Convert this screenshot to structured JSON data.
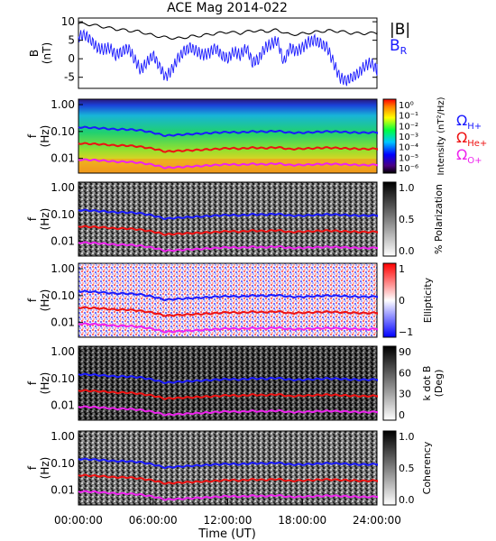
{
  "title": "ACE Mag 2014-022",
  "xaxis": {
    "label": "Time (UT)",
    "ticks": [
      "00:00:00",
      "06:00:00",
      "12:00:00",
      "18:00:00",
      "24:00:00"
    ],
    "range_hours": [
      0,
      24
    ]
  },
  "legend_b": {
    "total": "|B|",
    "radial_base": "B",
    "radial_sub": "R",
    "total_color": "#000000",
    "radial_color": "#1a1aff"
  },
  "gyro_legend": [
    {
      "base": "Ω",
      "sub": "H+",
      "color": "#1a1aff"
    },
    {
      "base": "Ω",
      "sub": "He+",
      "color": "#ee1111"
    },
    {
      "base": "Ω",
      "sub": "O+",
      "color": "#ee22ee"
    }
  ],
  "chart_data": [
    {
      "type": "line",
      "panel": "magnetic-field",
      "ylabel_top": "B",
      "ylabel_bottom": "(nT)",
      "ylim": [
        -8,
        11
      ],
      "yticks": [
        "10",
        "5",
        "0",
        "-5"
      ],
      "ytick_values": [
        10,
        5,
        0,
        -5
      ],
      "series": [
        {
          "name": "|B|",
          "x_hours": [
            0,
            1,
            2,
            3,
            4,
            5,
            6,
            7,
            8,
            9,
            10,
            11,
            12,
            13,
            14,
            15,
            16,
            17,
            18,
            19,
            20,
            21,
            22,
            23,
            24
          ],
          "values": [
            9.5,
            9.2,
            8.6,
            8.0,
            7.6,
            7.3,
            6.3,
            5.8,
            5.5,
            6.0,
            6.3,
            6.8,
            7.2,
            6.9,
            7.6,
            7.4,
            7.8,
            6.5,
            6.8,
            7.2,
            7.6,
            7.4,
            6.9,
            6.8,
            7.0
          ]
        },
        {
          "name": "B",
          "x_hours": [
            0,
            0.5,
            1,
            1.5,
            2,
            2.5,
            3,
            3.5,
            4,
            4.5,
            5,
            5.5,
            6,
            6.5,
            7,
            7.5,
            8,
            8.5,
            9,
            9.5,
            10,
            10.5,
            11,
            11.5,
            12,
            12.5,
            13,
            13.5,
            14,
            14.5,
            15,
            15.5,
            16,
            16.5,
            17,
            17.5,
            18,
            18.5,
            19,
            19.5,
            20,
            20.5,
            21,
            21.5,
            22,
            22.5,
            23,
            23.5,
            24
          ],
          "values": [
            6,
            6.5,
            5,
            3,
            2.5,
            3,
            1,
            2,
            3,
            0,
            -3,
            -1,
            1,
            -2,
            -5,
            -3,
            0,
            2,
            3,
            2,
            1,
            1.5,
            3,
            1,
            0,
            2,
            1,
            3,
            -1,
            0,
            3,
            4,
            5,
            -1,
            3,
            2,
            3,
            4.5,
            5,
            4,
            3,
            -1,
            -5,
            -6,
            -5,
            -4,
            -2,
            -1,
            -3
          ]
        }
      ]
    },
    {
      "type": "heatmap",
      "panel": "intensity",
      "ylabel_top": "f",
      "ylabel_bottom": "(Hz)",
      "yticks": [
        "1.00",
        "0.10",
        "0.01"
      ],
      "colorbar_label": "Intensity (nT²/Hz)",
      "colorbar_ticks": [
        "10⁰",
        "10⁻¹",
        "10⁻²",
        "10⁻³",
        "10⁻⁴",
        "10⁻⁵",
        "10⁻⁶"
      ]
    },
    {
      "type": "heatmap",
      "panel": "polarization",
      "ylabel_top": "f",
      "ylabel_bottom": "(Hz)",
      "yticks": [
        "1.00",
        "0.10",
        "0.01"
      ],
      "colorbar_label": "% Polarization",
      "colorbar_ticks": [
        "1.0",
        "0.5",
        "0.0"
      ]
    },
    {
      "type": "heatmap",
      "panel": "ellipticity",
      "ylabel_top": "f",
      "ylabel_bottom": "(Hz)",
      "yticks": [
        "1.00",
        "0.10",
        "0.01"
      ],
      "colorbar_label": "Ellipticity",
      "colorbar_ticks": [
        "1",
        "0",
        "−1"
      ]
    },
    {
      "type": "heatmap",
      "panel": "wave-normal-angle",
      "ylabel_top": "f",
      "ylabel_bottom": "(Hz)",
      "yticks": [
        "1.00",
        "0.10",
        "0.01"
      ],
      "colorbar_label_top": "k dot B",
      "colorbar_label_bottom": "(Deg)",
      "colorbar_ticks": [
        "90",
        "60",
        "30",
        "0"
      ]
    },
    {
      "type": "heatmap",
      "panel": "coherency",
      "ylabel_top": "f",
      "ylabel_bottom": "(Hz)",
      "yticks": [
        "1.00",
        "0.10",
        "0.01"
      ],
      "colorbar_label": "Coherency",
      "colorbar_ticks": [
        "1.0",
        "0.5",
        "0.0"
      ]
    }
  ],
  "gyrofrequency_lines": {
    "x_hours": [
      0,
      1,
      2,
      3,
      4,
      5,
      6,
      7,
      8,
      9,
      10,
      11,
      12,
      13,
      14,
      15,
      16,
      17,
      18,
      19,
      20,
      21,
      22,
      23,
      24
    ],
    "H_plus_hz": [
      0.145,
      0.14,
      0.13,
      0.12,
      0.12,
      0.11,
      0.09,
      0.07,
      0.075,
      0.08,
      0.085,
      0.09,
      0.095,
      0.092,
      0.1,
      0.098,
      0.105,
      0.09,
      0.09,
      0.095,
      0.1,
      0.098,
      0.092,
      0.09,
      0.093
    ],
    "He_plus_hz": [
      0.036,
      0.035,
      0.033,
      0.03,
      0.03,
      0.027,
      0.023,
      0.018,
      0.019,
      0.02,
      0.021,
      0.022,
      0.024,
      0.023,
      0.025,
      0.024,
      0.026,
      0.022,
      0.023,
      0.024,
      0.025,
      0.024,
      0.023,
      0.022,
      0.023
    ],
    "O_plus_hz": [
      0.009,
      0.0088,
      0.0082,
      0.0075,
      0.0075,
      0.0068,
      0.0058,
      0.0045,
      0.0047,
      0.005,
      0.0053,
      0.0056,
      0.006,
      0.0058,
      0.0062,
      0.006,
      0.0065,
      0.0056,
      0.0057,
      0.006,
      0.0062,
      0.0061,
      0.0058,
      0.0056,
      0.0058
    ]
  }
}
